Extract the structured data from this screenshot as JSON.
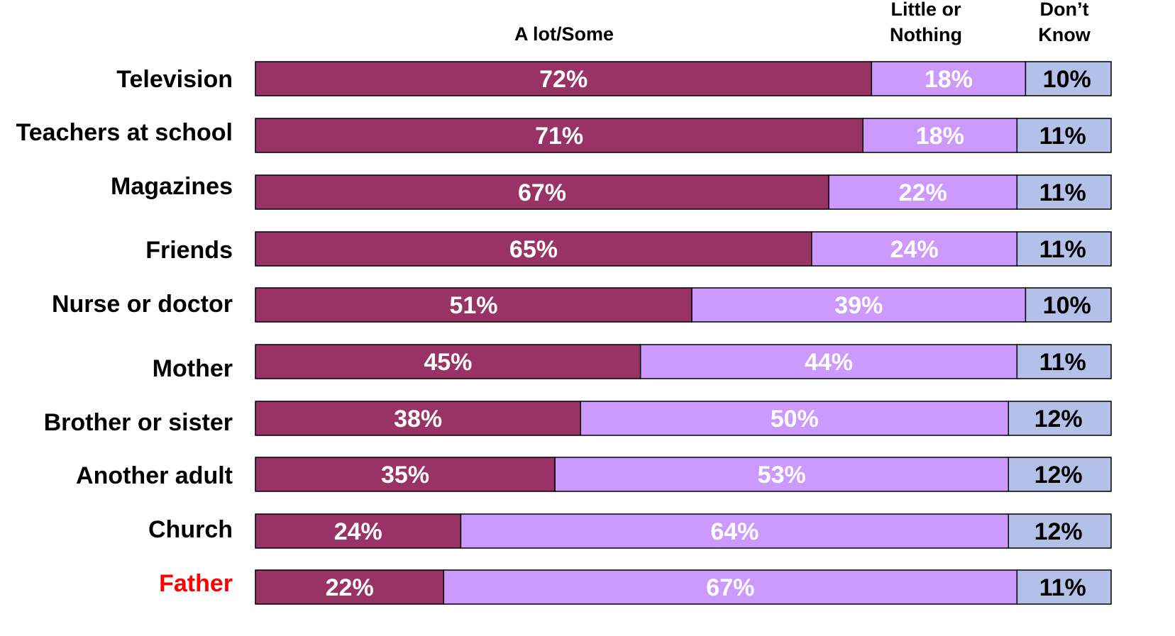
{
  "chart_data": {
    "type": "bar",
    "orientation": "horizontal",
    "stacked": true,
    "normalized": true,
    "categories": [
      "Television",
      "Teachers at school",
      "Magazines",
      "Friends",
      "Nurse or doctor",
      "Mother",
      "Brother or sister",
      "Another adult",
      "Church",
      "Father"
    ],
    "highlighted_category": "Father",
    "highlight_color": "#ff0000",
    "series": [
      {
        "name": "A lot/Some",
        "header_lines": [
          "A lot/Some"
        ],
        "color": "#993366",
        "label_color": "#ffffff",
        "values": [
          72,
          71,
          67,
          65,
          51,
          45,
          38,
          35,
          24,
          22
        ],
        "labels": [
          "72%",
          "71%",
          "67%",
          "65%",
          "51%",
          "45%",
          "38%",
          "35%",
          "24%",
          "22%"
        ]
      },
      {
        "name": "Little or Nothing",
        "header_lines": [
          "Little or",
          "Nothing"
        ],
        "color": "#cc99ff",
        "label_color": "#ffffff",
        "values": [
          18,
          18,
          22,
          24,
          39,
          44,
          50,
          53,
          64,
          67
        ],
        "labels": [
          "18%",
          "18%",
          "22%",
          "24%",
          "39%",
          "44%",
          "50%",
          "53%",
          "64%",
          "67%"
        ]
      },
      {
        "name": "Don’t Know",
        "header_lines": [
          "Don’t",
          "Know"
        ],
        "color": "#b3c1e9",
        "label_color": "#000000",
        "values": [
          10,
          11,
          11,
          11,
          10,
          11,
          12,
          12,
          12,
          11
        ],
        "labels": [
          "10%",
          "11%",
          "11%",
          "11%",
          "10%",
          "11%",
          "12%",
          "12%",
          "12%",
          "11%"
        ]
      }
    ],
    "xlim": [
      0,
      100
    ],
    "unit": "%",
    "gridlines": false,
    "legend": "column headers above bars"
  }
}
